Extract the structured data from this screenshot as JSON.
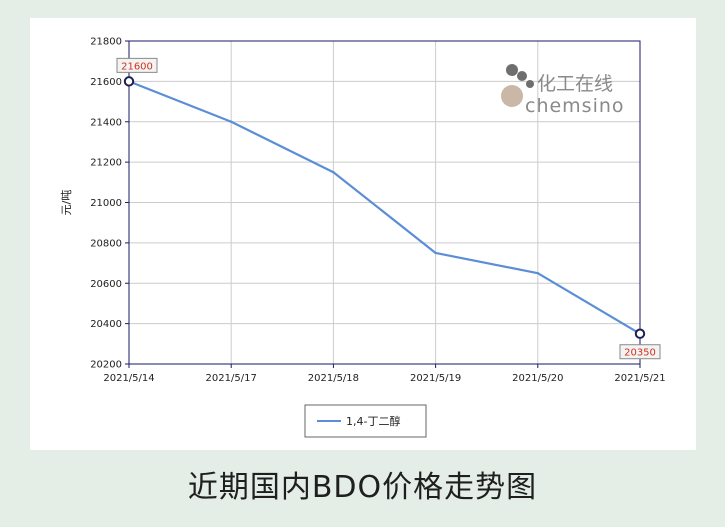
{
  "caption": "近期国内BDO价格走势图",
  "watermark": {
    "cn": "化工在线",
    "en": "chemsino"
  },
  "colors": {
    "line": "#5b8ed6",
    "marker": "#1e1e55",
    "axis": "#1a1a66",
    "grid": "#cccccc",
    "data_label": "#d0321e",
    "background": "#e4eee6"
  },
  "chart_data": {
    "type": "line",
    "title": "",
    "xlabel": "",
    "ylabel": "元/吨",
    "categories": [
      "2021/5/14",
      "2021/5/17",
      "2021/5/18",
      "2021/5/19",
      "2021/5/20",
      "2021/5/21"
    ],
    "series": [
      {
        "name": "1,4-丁二醇",
        "values": [
          21600,
          21400,
          21150,
          20750,
          20650,
          20350
        ]
      }
    ],
    "ylim": [
      20200,
      21800
    ],
    "yticks": [
      20200,
      20400,
      20600,
      20800,
      21000,
      21200,
      21400,
      21600,
      21800
    ],
    "data_labels": [
      {
        "index": 0,
        "text": "21600"
      },
      {
        "index": 5,
        "text": "20350"
      }
    ],
    "grid": true,
    "legend": "bottom-center"
  }
}
